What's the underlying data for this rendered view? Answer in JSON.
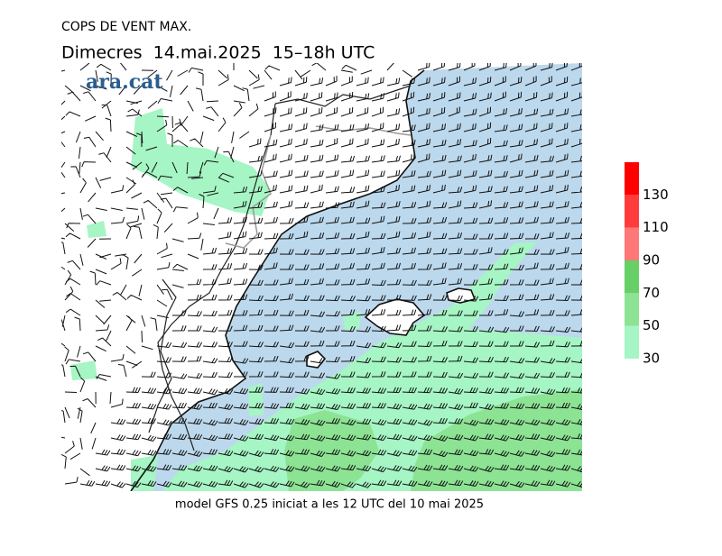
{
  "title": "COPS DE VENT MAX.",
  "subtitle": "Dimecres  14.mai.2025  15–18h UTC",
  "logo": "ara.cat",
  "footer": "model GFS 0.25 iniciat a les 12 UTC del 10 mai 2025",
  "legend": {
    "bins": [
      30,
      50,
      70,
      90,
      110,
      130,
      150
    ],
    "ticks": [
      30,
      50,
      70,
      90,
      110,
      130
    ],
    "colors": [
      "#a6f5c4",
      "#8ce394",
      "#66d066",
      "#ff7878",
      "#ff3c3c",
      "#ff0000"
    ]
  }
}
